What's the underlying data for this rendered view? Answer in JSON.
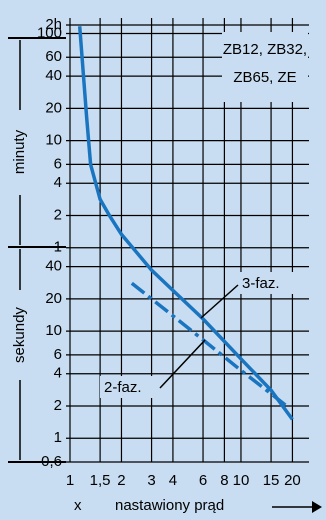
{
  "chart_data": {
    "type": "line",
    "x_label_prefix": "x",
    "x_label": "nastawiony prąd",
    "y_label_upper": "minuty",
    "y_label_lower": "sekundy",
    "device_label": [
      "ZB12, ZB32,",
      "ZB65, ZE"
    ],
    "log_x": true,
    "log_y": true,
    "grid": true,
    "xlim": [
      1,
      25
    ],
    "xticks": [
      1,
      {
        "value": 1.5,
        "label": "1,5"
      },
      2,
      3,
      4,
      6,
      8,
      10,
      15,
      20
    ],
    "ylim": [
      0.6,
      7200
    ],
    "yticks": [
      {
        "value": 7200,
        "label": "2h"
      },
      {
        "value": 6000,
        "label": "100"
      },
      {
        "value": 3600,
        "label": "60"
      },
      {
        "value": 2400,
        "label": "40"
      },
      {
        "value": 1200,
        "label": "20"
      },
      {
        "value": 600,
        "label": "10"
      },
      {
        "value": 360,
        "label": "6"
      },
      {
        "value": 240,
        "label": "4"
      },
      {
        "value": 120,
        "label": "2"
      },
      {
        "value": 60,
        "label": "1"
      },
      40,
      20,
      10,
      6,
      4,
      2,
      1,
      {
        "value": 0.6,
        "label": "0,6"
      }
    ],
    "series": [
      {
        "name": "3-faz.",
        "color": "#1a75c0",
        "dash": false,
        "x": [
          1.14,
          1.25,
          1.32,
          1.5,
          1.7,
          2,
          3,
          4,
          6,
          10,
          15,
          20
        ],
        "values": [
          7000,
          1000,
          360,
          170,
          120,
          80,
          37,
          24,
          13,
          5.5,
          2.8,
          1.5
        ]
      },
      {
        "name": "2-faz.",
        "color": "#1a75c0",
        "dash": true,
        "x": [
          2.3,
          4,
          6,
          10,
          15,
          18.5
        ],
        "values": [
          28,
          13.9,
          8.3,
          4.3,
          2.6,
          2
        ]
      }
    ]
  }
}
